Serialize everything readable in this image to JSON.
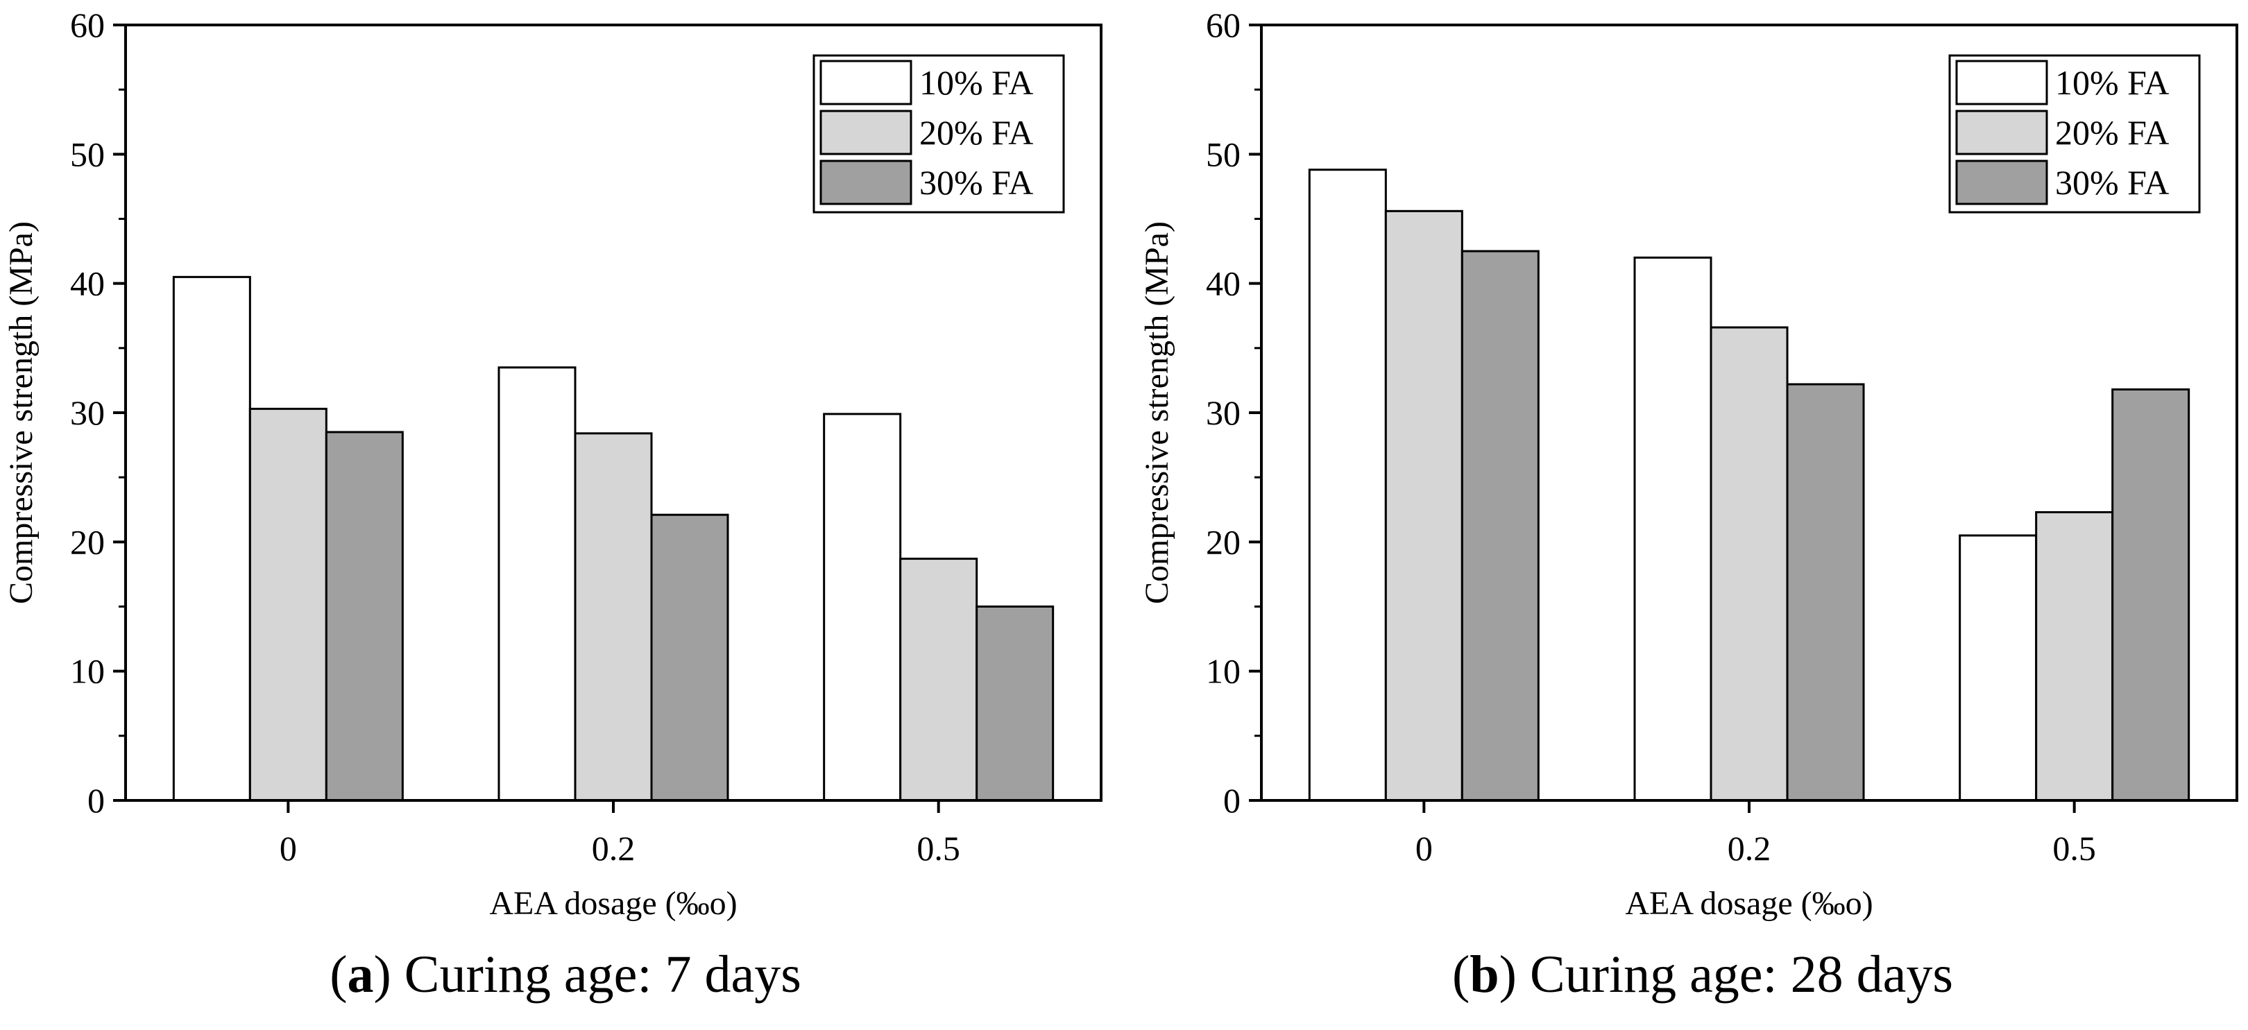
{
  "chart_data": [
    {
      "type": "bar",
      "caption": {
        "letter": "a",
        "text": "Curing age: 7 days"
      },
      "categories": [
        "0",
        "0.2",
        "0.5"
      ],
      "series": [
        {
          "name": "10% FA",
          "values": [
            40.5,
            33.5,
            29.9
          ]
        },
        {
          "name": "20% FA",
          "values": [
            30.3,
            28.4,
            18.7
          ]
        },
        {
          "name": "30% FA",
          "values": [
            28.5,
            22.1,
            15.0
          ]
        }
      ],
      "xlabel": "AEA dosage (‰o)",
      "ylabel": "Compressive strength (MPa)",
      "ylim": [
        0,
        60
      ],
      "yticks": [
        0,
        10,
        20,
        30,
        40,
        50,
        60
      ],
      "grid": false,
      "legend": "top-right"
    },
    {
      "type": "bar",
      "caption": {
        "letter": "b",
        "text": "Curing age: 28 days"
      },
      "categories": [
        "0",
        "0.2",
        "0.5"
      ],
      "series": [
        {
          "name": "10% FA",
          "values": [
            48.8,
            42.0,
            20.5
          ]
        },
        {
          "name": "20% FA",
          "values": [
            45.6,
            36.6,
            22.3
          ]
        },
        {
          "name": "30% FA",
          "values": [
            42.5,
            32.2,
            31.8
          ]
        }
      ],
      "xlabel": "AEA dosage (‰o)",
      "ylabel": "Compressive strength (MPa)",
      "ylim": [
        0,
        60
      ],
      "yticks": [
        0,
        10,
        20,
        30,
        40,
        50,
        60
      ],
      "grid": false,
      "legend": "top-right"
    }
  ],
  "colors": {
    "series": [
      "#ffffff",
      "#d6d6d6",
      "#a0a0a0"
    ],
    "stroke": "#000000"
  }
}
